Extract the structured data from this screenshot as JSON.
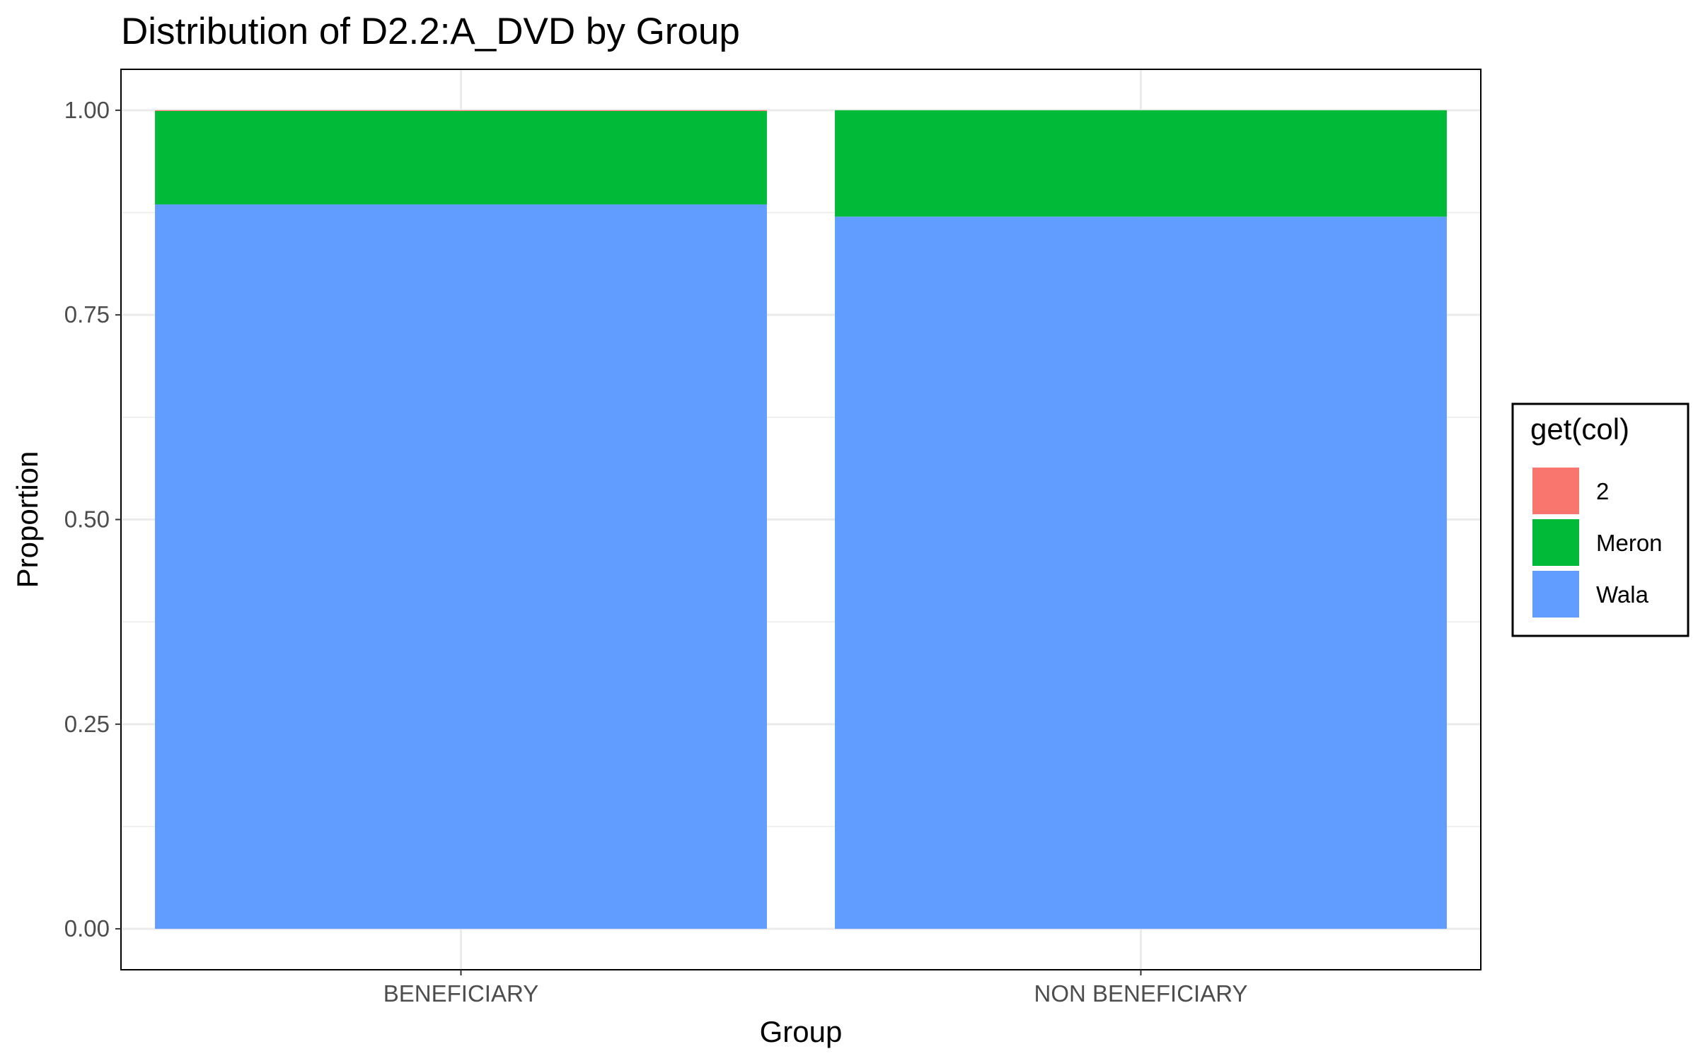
{
  "chart_data": {
    "type": "bar",
    "stacked": true,
    "title": "Distribution of D2.2:A_DVD by Group",
    "xlabel": "Group",
    "ylabel": "Proportion",
    "categories": [
      "BENEFICIARY",
      "NON BENEFICIARY"
    ],
    "ylim": [
      -0.05,
      1.05
    ],
    "yticks": [
      "0.00",
      "0.25",
      "0.50",
      "0.75",
      "1.00"
    ],
    "grid": true,
    "legend": {
      "title": "get(col)",
      "position": "right"
    },
    "series": [
      {
        "name": "Wala",
        "values": [
          0.885,
          0.87
        ],
        "color": "#619CFF"
      },
      {
        "name": "Meron",
        "values": [
          0.114,
          0.13
        ],
        "color": "#00BA38"
      },
      {
        "name": "2",
        "values": [
          0.001,
          0.0
        ],
        "color": "#F8766D"
      }
    ]
  }
}
